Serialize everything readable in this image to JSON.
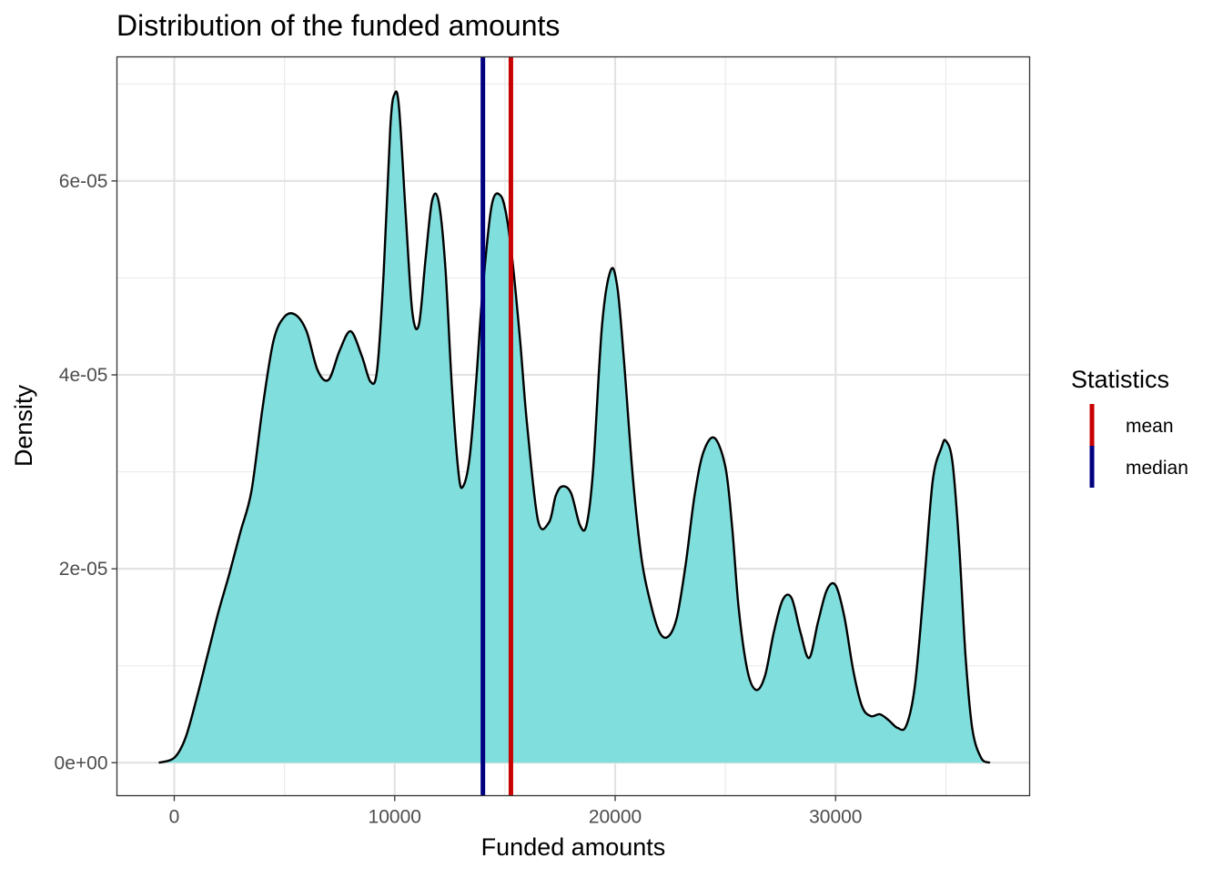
{
  "chart_data": {
    "type": "area",
    "title": "Distribution of the funded amounts",
    "xlabel": "Funded amounts",
    "ylabel": "Density",
    "xlim": [
      -2600,
      38800
    ],
    "ylim": [
      -3.4e-06,
      7.28e-05
    ],
    "x_ticks": [
      0,
      10000,
      20000,
      30000
    ],
    "x_tick_labels": [
      "0",
      "10000",
      "20000",
      "30000"
    ],
    "y_ticks": [
      0,
      2e-05,
      4e-05,
      6e-05
    ],
    "y_tick_labels": [
      "0e+00",
      "2e-05",
      "4e-05",
      "6e-05"
    ],
    "grid": true,
    "fill_color": "#80DEDC",
    "line_color": "#000000",
    "series": [
      {
        "x": [
          -700,
          0,
          500,
          1000,
          1500,
          2000,
          2500,
          3000,
          3500,
          4000,
          4500,
          5000,
          5500,
          6000,
          6500,
          7000,
          7500,
          8000,
          8500,
          8900,
          9200,
          9500,
          9800,
          10000,
          10200,
          10500,
          10800,
          11100,
          11400,
          11700,
          12000,
          12300,
          12600,
          12900,
          13100,
          13400,
          13700,
          14000,
          14400,
          14800,
          15100,
          15400,
          15700,
          16000,
          16500,
          17000,
          17300,
          17600,
          18000,
          18400,
          18700,
          19000,
          19400,
          19800,
          20100,
          20400,
          20800,
          21200,
          21600,
          22000,
          22400,
          22800,
          23200,
          23600,
          24000,
          24500,
          25000,
          25300,
          25600,
          26000,
          26400,
          26800,
          27200,
          27600,
          28000,
          28400,
          28800,
          29200,
          29600,
          30000,
          30400,
          30800,
          31200,
          31600,
          32000,
          32400,
          32800,
          33200,
          33600,
          34000,
          34400,
          34800,
          35000,
          35300,
          35600,
          35900,
          36200,
          36600,
          37000
        ],
        "y": [
          0.0,
          5e-07,
          2.5e-06,
          6.5e-06,
          1.1e-05,
          1.55e-05,
          1.95e-05,
          2.38e-05,
          2.8e-05,
          3.65e-05,
          4.35e-05,
          4.6e-05,
          4.62e-05,
          4.45e-05,
          4.05e-05,
          3.95e-05,
          4.25e-05,
          4.45e-05,
          4.2e-05,
          3.93e-05,
          4.05e-05,
          5.05e-05,
          6.55e-05,
          6.9e-05,
          6.75e-05,
          5.65e-05,
          4.65e-05,
          4.52e-05,
          5.2e-05,
          5.8e-05,
          5.78e-05,
          5.1e-05,
          3.85e-05,
          2.98e-05,
          2.85e-05,
          3.15e-05,
          3.95e-05,
          4.9e-05,
          5.75e-05,
          5.85e-05,
          5.6e-05,
          5.05e-05,
          4.32e-05,
          3.5e-05,
          2.5e-05,
          2.48e-05,
          2.75e-05,
          2.85e-05,
          2.78e-05,
          2.45e-05,
          2.45e-05,
          3.02e-05,
          4.5e-05,
          5.08e-05,
          4.9e-05,
          4.15e-05,
          2.95e-05,
          2.1e-05,
          1.65e-05,
          1.35e-05,
          1.3e-05,
          1.5e-05,
          2.05e-05,
          2.75e-05,
          3.2e-05,
          3.35e-05,
          3.05e-05,
          2.45e-05,
          1.6e-05,
          9.5e-06,
          7.5e-06,
          9e-06,
          1.35e-05,
          1.68e-05,
          1.7e-05,
          1.35e-05,
          1.08e-05,
          1.45e-05,
          1.78e-05,
          1.83e-05,
          1.5e-05,
          9.5e-06,
          5.8e-06,
          4.8e-06,
          5e-06,
          4.4e-06,
          3.6e-06,
          3.8e-06,
          8e-06,
          1.8e-05,
          2.9e-05,
          3.25e-05,
          3.32e-05,
          3.1e-05,
          2.25e-05,
          1.08e-05,
          3.5e-06,
          5e-07,
          0.0
        ]
      }
    ],
    "vlines": [
      {
        "name": "mean",
        "x": 15270,
        "color": "#C80000"
      },
      {
        "name": "median",
        "x": 14000,
        "color": "#000080"
      }
    ],
    "legend": {
      "title": "Statistics",
      "position": "right",
      "items": [
        {
          "label": "mean",
          "color": "#C80000"
        },
        {
          "label": "median",
          "color": "#000080"
        }
      ]
    }
  }
}
